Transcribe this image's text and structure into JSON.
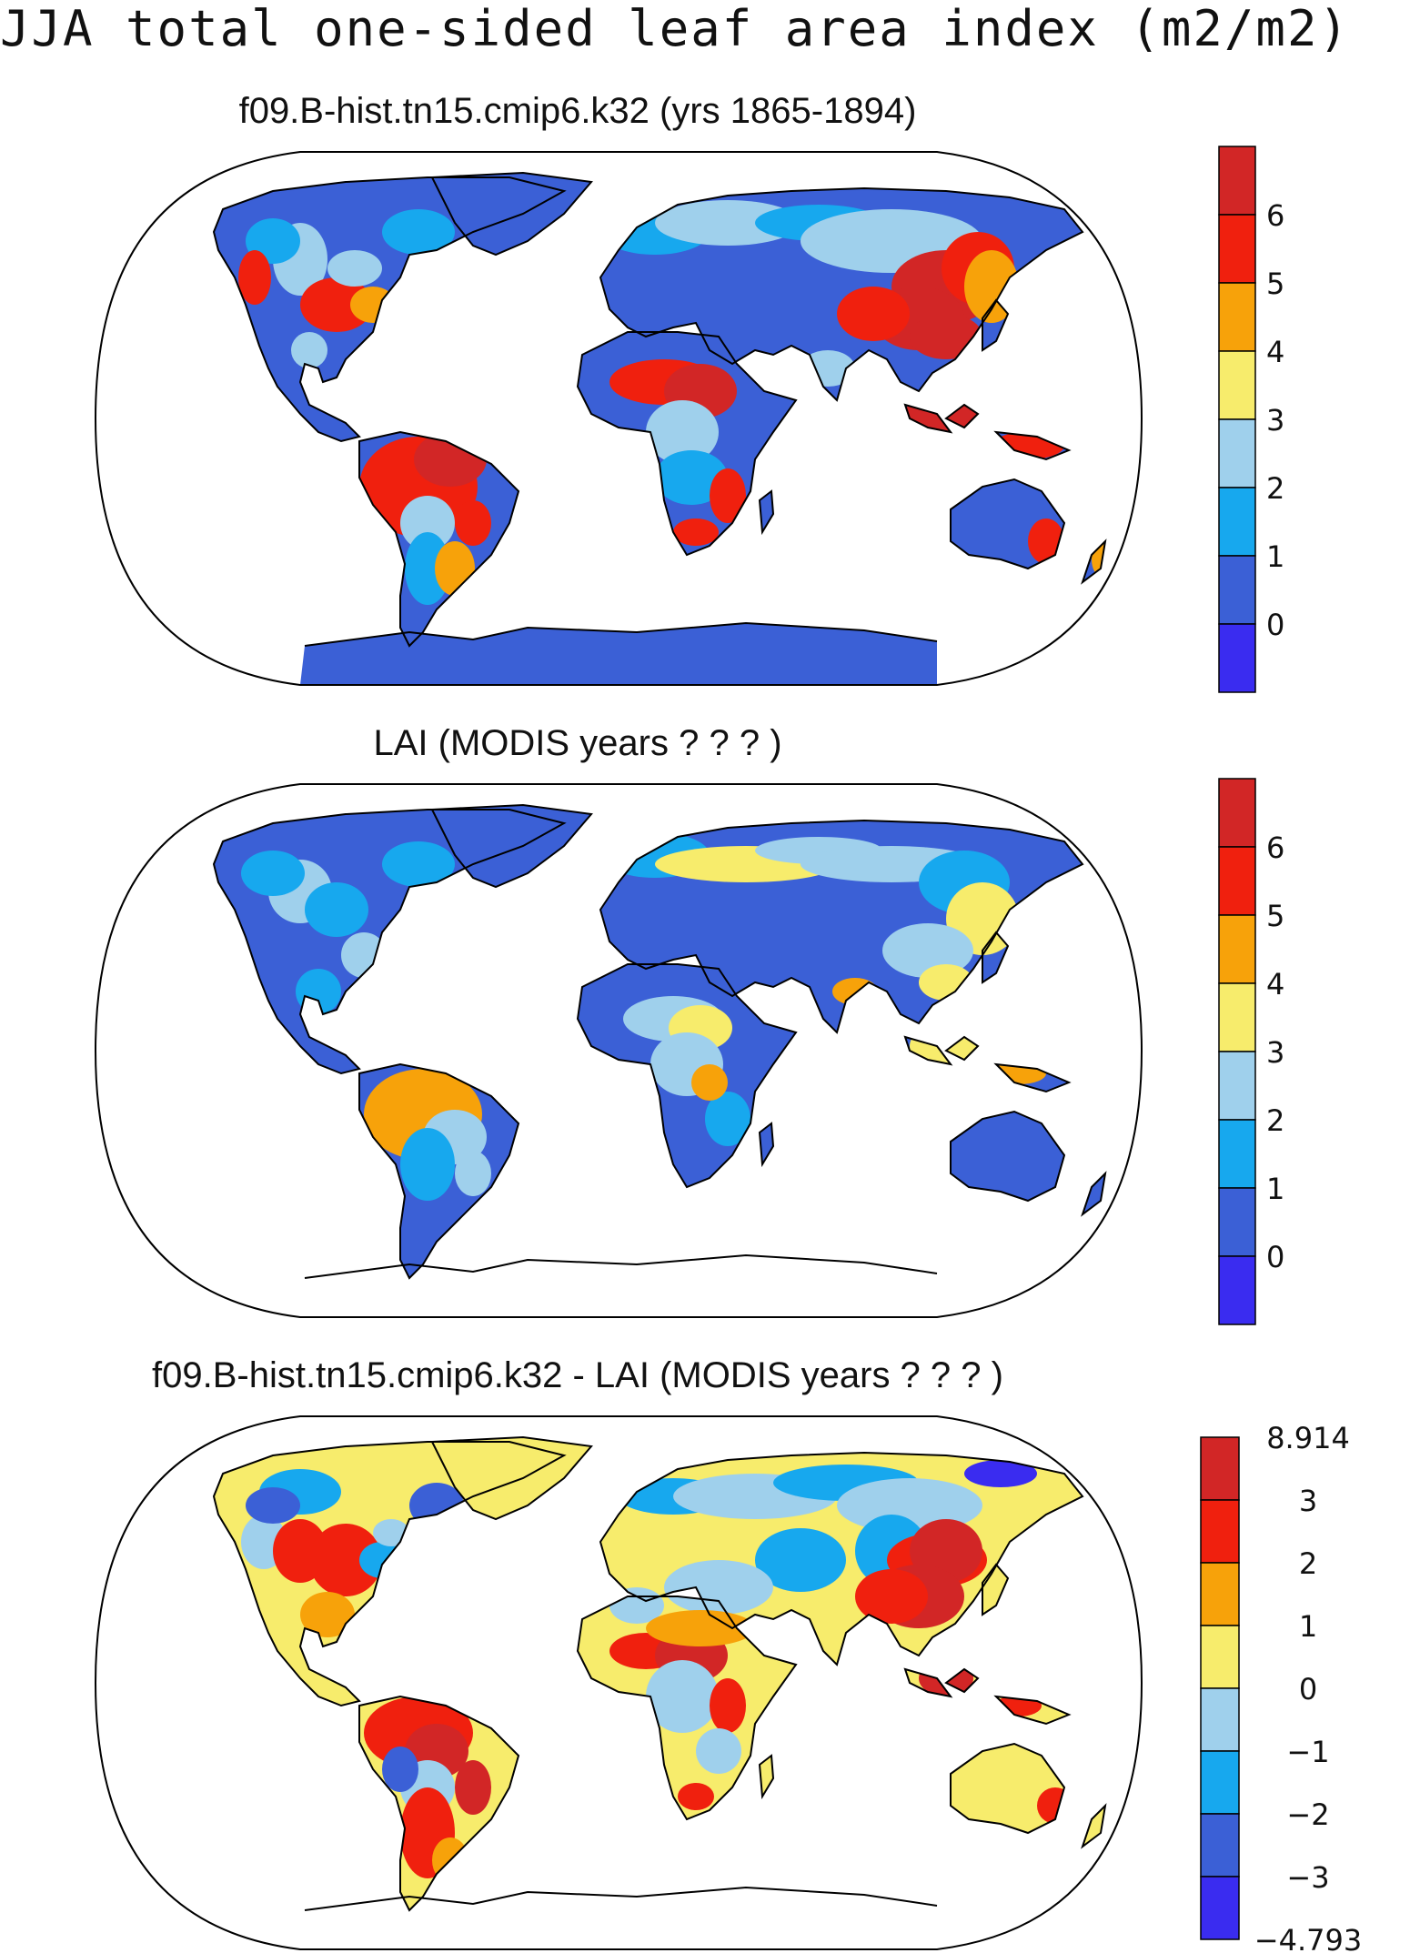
{
  "figure": {
    "title": "JJA total one-sided leaf area index (m2/m2)"
  },
  "colors": {
    "bins": [
      "#3a2cf0",
      "#3b60d6",
      "#17a8ee",
      "#9fd0ec",
      "#f7ec6c",
      "#f7a20a",
      "#f0200e",
      "#d22626"
    ]
  },
  "panels": [
    {
      "title": "f09.B-hist.tn15.cmip6.k32 (yrs 1865-1894)",
      "colorbar_labels": [
        "6",
        "5",
        "4",
        "3",
        "2",
        "1",
        "0"
      ],
      "land_default_bin": 1,
      "antarctica_bin": 1
    },
    {
      "title": "LAI (MODIS years ? ? ? )",
      "colorbar_labels": [
        "6",
        "5",
        "4",
        "3",
        "2",
        "1",
        "0"
      ],
      "land_default_bin": 1,
      "antarctica_bin": -1
    },
    {
      "title": "f09.B-hist.tn15.cmip6.k32 - LAI (MODIS years ? ? ? )",
      "colorbar_labels": [
        "8.914",
        "3",
        "2",
        "1",
        "0",
        "−1",
        "−2",
        "−3",
        "−4.793"
      ],
      "land_default_bin": 4,
      "antarctica_bin": -1
    }
  ]
}
